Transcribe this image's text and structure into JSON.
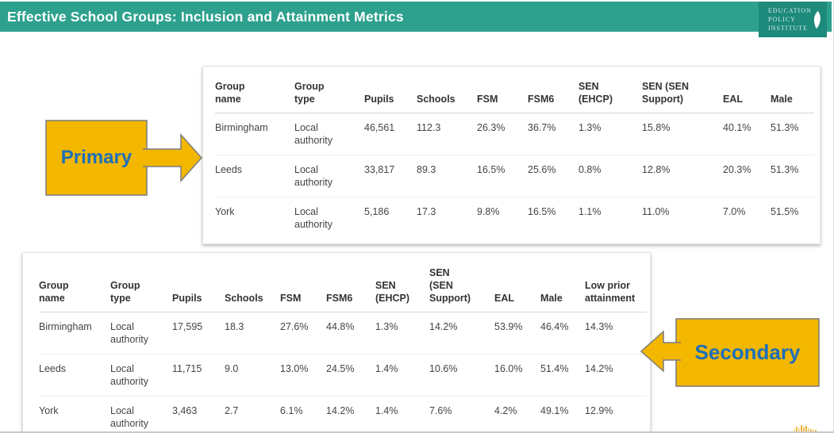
{
  "slide": {
    "title": "Effective School Groups: Inclusion and Attainment Metrics"
  },
  "logo": {
    "line1": "EDUCATION",
    "line2": "POLICY",
    "line3": "INSTITUTE",
    "leaf_icon": "leaf-icon"
  },
  "colors": {
    "header_bar": "#2da18e",
    "logo_box": "#1d8a7b",
    "callout_fill": "#f3b700",
    "callout_border": "#7c7c7c",
    "callout_text": "#1e6fb8",
    "table_header_text": "#333333",
    "table_body_text": "#444444",
    "bar_fragment_yellow": "#f0bb45"
  },
  "callouts": {
    "primary": {
      "label": "Primary",
      "arrow_direction": "right"
    },
    "secondary": {
      "label": "Secondary",
      "arrow_direction": "left"
    }
  },
  "primary_table": {
    "columns": [
      "Group\nname",
      "Group\ntype",
      "Pupils",
      "Schools",
      "FSM",
      "FSM6",
      "SEN\n(EHCP)",
      "SEN (SEN\nSupport)",
      "EAL",
      "Male"
    ],
    "rows": [
      [
        "Birmingham",
        "Local\nauthority",
        "46,561",
        "112.3",
        "26.3%",
        "36.7%",
        "1.3%",
        "15.8%",
        "40.1%",
        "51.3%"
      ],
      [
        "Leeds",
        "Local\nauthority",
        "33,817",
        "89.3",
        "16.5%",
        "25.6%",
        "0.8%",
        "12.8%",
        "20.3%",
        "51.3%"
      ],
      [
        "York",
        "Local\nauthority",
        "5,186",
        "17.3",
        "9.8%",
        "16.5%",
        "1.1%",
        "11.0%",
        "7.0%",
        "51.5%"
      ]
    ]
  },
  "secondary_table": {
    "columns": [
      "Group\nname",
      "Group\ntype",
      "Pupils",
      "Schools",
      "FSM",
      "FSM6",
      "SEN\n(EHCP)",
      "SEN\n(SEN\nSupport)",
      "EAL",
      "Male",
      "Low prior\nattainment"
    ],
    "rows": [
      [
        "Birmingham",
        "Local\nauthority",
        "17,595",
        "18.3",
        "27.6%",
        "44.8%",
        "1.3%",
        "14.2%",
        "53.9%",
        "46.4%",
        "14.3%"
      ],
      [
        "Leeds",
        "Local\nauthority",
        "11,715",
        "9.0",
        "13.0%",
        "24.5%",
        "1.4%",
        "10.6%",
        "16.0%",
        "51.4%",
        "14.2%"
      ],
      [
        "York",
        "Local\nauthority",
        "3,463",
        "2.7",
        "6.1%",
        "14.2%",
        "1.4%",
        "7.6%",
        "4.2%",
        "49.1%",
        "12.9%"
      ]
    ]
  }
}
